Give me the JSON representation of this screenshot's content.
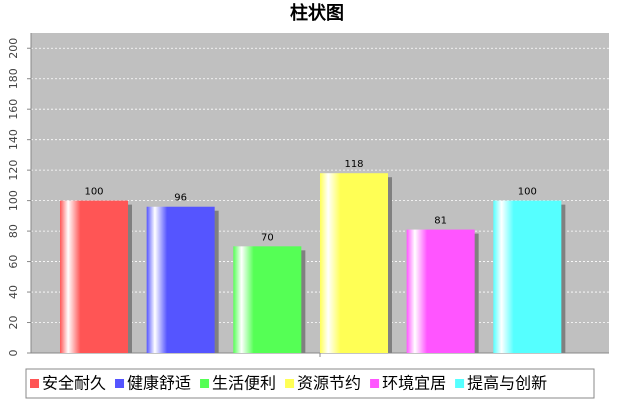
{
  "chart_data": {
    "type": "bar",
    "title": "柱状图",
    "categories": [
      null
    ],
    "series": [
      {
        "name": "安全耐久",
        "color": "#ff5555",
        "values": [
          100
        ]
      },
      {
        "name": "健康舒适",
        "color": "#5555ff",
        "values": [
          96
        ]
      },
      {
        "name": "生活便利",
        "color": "#55ff55",
        "values": [
          70
        ]
      },
      {
        "name": "资源节约",
        "color": "#ffff55",
        "values": [
          118
        ]
      },
      {
        "name": "环境宜居",
        "color": "#ff55ff",
        "values": [
          81
        ]
      },
      {
        "name": "提高与创新",
        "color": "#55ffff",
        "values": [
          100
        ]
      }
    ],
    "ylim": [
      0,
      210
    ],
    "yticks": [
      0,
      20,
      40,
      60,
      80,
      100,
      120,
      140,
      160,
      180,
      200
    ],
    "grid": true,
    "legend": "bottom"
  }
}
